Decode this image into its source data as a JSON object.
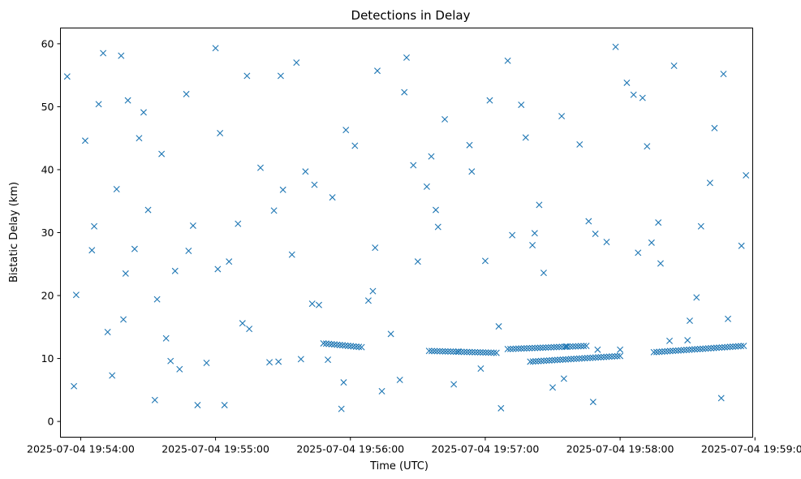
{
  "chart_data": {
    "type": "scatter",
    "title": "Detections in Delay",
    "xlabel": "Time (UTC)",
    "ylabel": "Bistatic Delay (km)",
    "marker": "x",
    "series_color": "#1f77b4",
    "grid": false,
    "legend": "none",
    "xlim": [
      "2025-07-04 19:53:51",
      "2025-07-04 19:58:59"
    ],
    "ylim": [
      -2.5,
      62.5
    ],
    "x_ticks": [
      "2025-07-04 19:54:00",
      "2025-07-04 19:55:00",
      "2025-07-04 19:56:00",
      "2025-07-04 19:57:00",
      "2025-07-04 19:58:00",
      "2025-07-04 19:59:00"
    ],
    "y_ticks": [
      0,
      10,
      20,
      30,
      40,
      50,
      60
    ],
    "tracks": [
      {
        "start": "2025-07-04 19:55:48",
        "end": "2025-07-04 19:56:05",
        "delay_start": 12.4,
        "delay_end": 11.8
      },
      {
        "start": "2025-07-04 19:56:35",
        "end": "2025-07-04 19:57:05",
        "delay_start": 11.2,
        "delay_end": 10.9
      },
      {
        "start": "2025-07-04 19:57:10",
        "end": "2025-07-04 19:57:45",
        "delay_start": 11.5,
        "delay_end": 12.0
      },
      {
        "start": "2025-07-04 19:57:20",
        "end": "2025-07-04 19:58:00",
        "delay_start": 9.5,
        "delay_end": 10.4
      },
      {
        "start": "2025-07-04 19:58:15",
        "end": "2025-07-04 19:58:55",
        "delay_start": 11.0,
        "delay_end": 12.0
      }
    ],
    "x": [
      "2025-07-04 19:53:54",
      "2025-07-04 19:53:58",
      "2025-07-04 19:54:06",
      "2025-07-04 19:54:08",
      "2025-07-04 19:54:10",
      "2025-07-04 19:54:12",
      "2025-07-04 19:54:16",
      "2025-07-04 19:54:18",
      "2025-07-04 19:54:21",
      "2025-07-04 19:54:24",
      "2025-07-04 19:54:26",
      "2025-07-04 19:54:30",
      "2025-07-04 19:54:34",
      "2025-07-04 19:54:38",
      "2025-07-04 19:54:44",
      "2025-07-04 19:54:48",
      "2025-07-04 19:54:52",
      "2025-07-04 19:54:56",
      "2025-07-04 19:55:02",
      "2025-07-04 19:55:06",
      "2025-07-04 19:55:10",
      "2025-07-04 19:55:14",
      "2025-07-04 19:55:20",
      "2025-07-04 19:55:26",
      "2025-07-04 19:55:30",
      "2025-07-04 19:55:36",
      "2025-07-04 19:55:40",
      "2025-07-04 19:55:46",
      "2025-07-04 19:55:52",
      "2025-07-04 19:55:56",
      "2025-07-04 19:56:02",
      "2025-07-04 19:56:08",
      "2025-07-04 19:56:12",
      "2025-07-04 19:56:18",
      "2025-07-04 19:56:24",
      "2025-07-04 19:56:30",
      "2025-07-04 19:56:36",
      "2025-07-04 19:56:42",
      "2025-07-04 19:56:48",
      "2025-07-04 19:56:54",
      "2025-07-04 19:57:00",
      "2025-07-04 19:57:06",
      "2025-07-04 19:57:12",
      "2025-07-04 19:57:18",
      "2025-07-04 19:57:24",
      "2025-07-04 19:57:30",
      "2025-07-04 19:57:36",
      "2025-07-04 19:57:42",
      "2025-07-04 19:57:48",
      "2025-07-04 19:57:54",
      "2025-07-04 19:58:00",
      "2025-07-04 19:58:06",
      "2025-07-04 19:58:12",
      "2025-07-04 19:58:18",
      "2025-07-04 19:58:24",
      "2025-07-04 19:58:30",
      "2025-07-04 19:58:36",
      "2025-07-04 19:58:42",
      "2025-07-04 19:58:48",
      "2025-07-04 19:58:54",
      "2025-07-04 19:54:02",
      "2025-07-04 19:54:14",
      "2025-07-04 19:54:28",
      "2025-07-04 19:54:40",
      "2025-07-04 19:54:50",
      "2025-07-04 19:55:00",
      "2025-07-04 19:55:12",
      "2025-07-04 19:55:24",
      "2025-07-04 19:55:34",
      "2025-07-04 19:55:44",
      "2025-07-04 19:55:58",
      "2025-07-04 19:56:10",
      "2025-07-04 19:56:22",
      "2025-07-04 19:56:34",
      "2025-07-04 19:56:46",
      "2025-07-04 19:56:58",
      "2025-07-04 19:57:10",
      "2025-07-04 19:57:22",
      "2025-07-04 19:57:34",
      "2025-07-04 19:57:46",
      "2025-07-04 19:57:58",
      "2025-07-04 19:58:10",
      "2025-07-04 19:58:22",
      "2025-07-04 19:58:34",
      "2025-07-04 19:58:46",
      "2025-07-04 19:54:20",
      "2025-07-04 19:54:36",
      "2025-07-04 19:55:04",
      "2025-07-04 19:55:28",
      "2025-07-04 19:55:50",
      "2025-07-04 19:56:14",
      "2025-07-04 19:56:38",
      "2025-07-04 19:57:02",
      "2025-07-04 19:57:26",
      "2025-07-04 19:57:50",
      "2025-07-04 19:58:14",
      "2025-07-04 19:58:40",
      "2025-07-04 19:53:57",
      "2025-07-04 19:54:05",
      "2025-07-04 19:54:19",
      "2025-07-04 19:54:33",
      "2025-07-04 19:54:47",
      "2025-07-04 19:55:01",
      "2025-07-04 19:55:15",
      "2025-07-04 19:55:29",
      "2025-07-04 19:55:43",
      "2025-07-04 19:55:57",
      "2025-07-04 19:56:11",
      "2025-07-04 19:56:25",
      "2025-07-04 19:56:39",
      "2025-07-04 19:56:53",
      "2025-07-04 19:57:07",
      "2025-07-04 19:57:21",
      "2025-07-04 19:57:35",
      "2025-07-04 19:57:49",
      "2025-07-04 19:58:03",
      "2025-07-04 19:58:17",
      "2025-07-04 19:58:31",
      "2025-07-04 19:58:45",
      "2025-07-04 19:58:56",
      "2025-07-04 19:54:42",
      "2025-07-04 19:55:38",
      "2025-07-04 19:56:28",
      "2025-07-04 19:57:16",
      "2025-07-04 19:58:08"
    ],
    "y": [
      54.8,
      20.1,
      31.0,
      50.4,
      58.5,
      14.2,
      36.9,
      58.1,
      51.0,
      27.4,
      45.0,
      33.6,
      19.4,
      13.2,
      8.3,
      27.1,
      2.6,
      9.3,
      45.8,
      25.4,
      31.4,
      54.9,
      40.3,
      33.5,
      36.8,
      57.0,
      39.7,
      18.5,
      35.6,
      2.0,
      43.8,
      19.2,
      55.7,
      13.9,
      52.3,
      25.4,
      42.1,
      48.0,
      11.1,
      39.7,
      25.5,
      15.1,
      29.6,
      45.1,
      34.4,
      5.4,
      11.9,
      44.0,
      3.1,
      28.5,
      11.4,
      51.9,
      43.7,
      25.1,
      56.5,
      12.9,
      31.0,
      46.6,
      16.3,
      27.9,
      44.6,
      7.3,
      49.1,
      9.6,
      31.1,
      59.3,
      15.6,
      9.4,
      26.5,
      37.6,
      46.3,
      20.7,
      6.6,
      37.3,
      5.9,
      8.4,
      57.3,
      29.9,
      48.5,
      31.8,
      59.5,
      51.4,
      12.8,
      19.7,
      55.2,
      23.5,
      42.5,
      2.6,
      9.5,
      9.8,
      4.8,
      33.6,
      51.0,
      23.6,
      11.4,
      28.4,
      37.9,
      5.6,
      27.2,
      16.2,
      3.4,
      52.0,
      24.2,
      14.7,
      54.9,
      18.7,
      6.2,
      27.6,
      57.8,
      30.9,
      43.9,
      2.1,
      28.0,
      6.8,
      29.8,
      53.8,
      31.6,
      16.0,
      3.7,
      39.1,
      23.9,
      9.9,
      40.7,
      50.3,
      26.8
    ]
  }
}
